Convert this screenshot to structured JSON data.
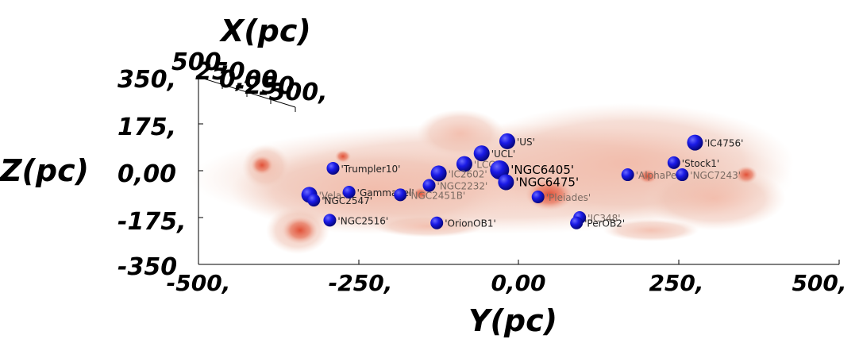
{
  "chart_data": {
    "type": "scatter",
    "title": "",
    "xlabel": "Y(pc)",
    "ylabel": "Z(pc)",
    "depth_label": "X(pc)",
    "xlim": [
      -500,
      500
    ],
    "ylim": [
      -350,
      350
    ],
    "x_ticks": [
      "-500,",
      "-250,",
      "0,00",
      "250,",
      "500,"
    ],
    "y_ticks": [
      "350,",
      "175,",
      "0,00",
      "-175,",
      "-350"
    ],
    "depth_ticks": [
      "500,",
      "250,",
      "0,00",
      "-250,",
      "-500,"
    ],
    "colors": {
      "cluster": "#1a1ae6",
      "dust": "#e8a898",
      "dust_core": "#d84a35"
    },
    "clusters": [
      {
        "name": "'US'",
        "x": -18,
        "y": 110,
        "size": "m",
        "label": "normal"
      },
      {
        "name": "'UCL'",
        "x": -58,
        "y": 65,
        "size": "m",
        "label": "normal"
      },
      {
        "name": "'LCC'",
        "x": -85,
        "y": 25,
        "size": "m",
        "label": "faint"
      },
      {
        "name": "'IC2602'",
        "x": -125,
        "y": -10,
        "size": "m",
        "label": "faint"
      },
      {
        "name": "'NGC6405'",
        "x": -30,
        "y": 3,
        "size": "l",
        "label": "big"
      },
      {
        "name": "'NGC6475'",
        "x": -20,
        "y": -43,
        "size": "m",
        "label": "big"
      },
      {
        "name": "'Trumpler10'",
        "x": -290,
        "y": 9,
        "size": "s",
        "label": "normal"
      },
      {
        "name": "'Vela'",
        "x": -327,
        "y": -90,
        "size": "m",
        "label": "faint"
      },
      {
        "name": "'NGC2547'",
        "x": -320,
        "y": -110,
        "size": "s",
        "label": "normal"
      },
      {
        "name": "'GammaVel'",
        "x": -265,
        "y": -80,
        "size": "s",
        "label": "normal"
      },
      {
        "name": "'NGC2451B'",
        "x": -185,
        "y": -90,
        "size": "s",
        "label": "faint"
      },
      {
        "name": "'NGC2232'",
        "x": -140,
        "y": -55,
        "size": "s",
        "label": "faint"
      },
      {
        "name": "'NGC2516'",
        "x": -295,
        "y": -185,
        "size": "s",
        "label": "normal"
      },
      {
        "name": "'OrionOB1'",
        "x": -128,
        "y": -195,
        "size": "s",
        "label": "normal"
      },
      {
        "name": "'Pleiades'",
        "x": 30,
        "y": -98,
        "size": "s",
        "label": "faint"
      },
      {
        "name": "'IC348'",
        "x": 95,
        "y": -175,
        "size": "s",
        "label": "faint"
      },
      {
        "name": "'PerOB2'",
        "x": 90,
        "y": -195,
        "size": "s",
        "label": "normal"
      },
      {
        "name": "'AlphaPer'",
        "x": 170,
        "y": -15,
        "size": "s",
        "label": "faint"
      },
      {
        "name": "'IC4756'",
        "x": 275,
        "y": 105,
        "size": "m",
        "label": "normal"
      },
      {
        "name": "'Stock1'",
        "x": 242,
        "y": 30,
        "size": "s",
        "label": "normal"
      },
      {
        "name": "'NGC7243'",
        "x": 255,
        "y": -15,
        "size": "s",
        "label": "faint"
      }
    ]
  }
}
